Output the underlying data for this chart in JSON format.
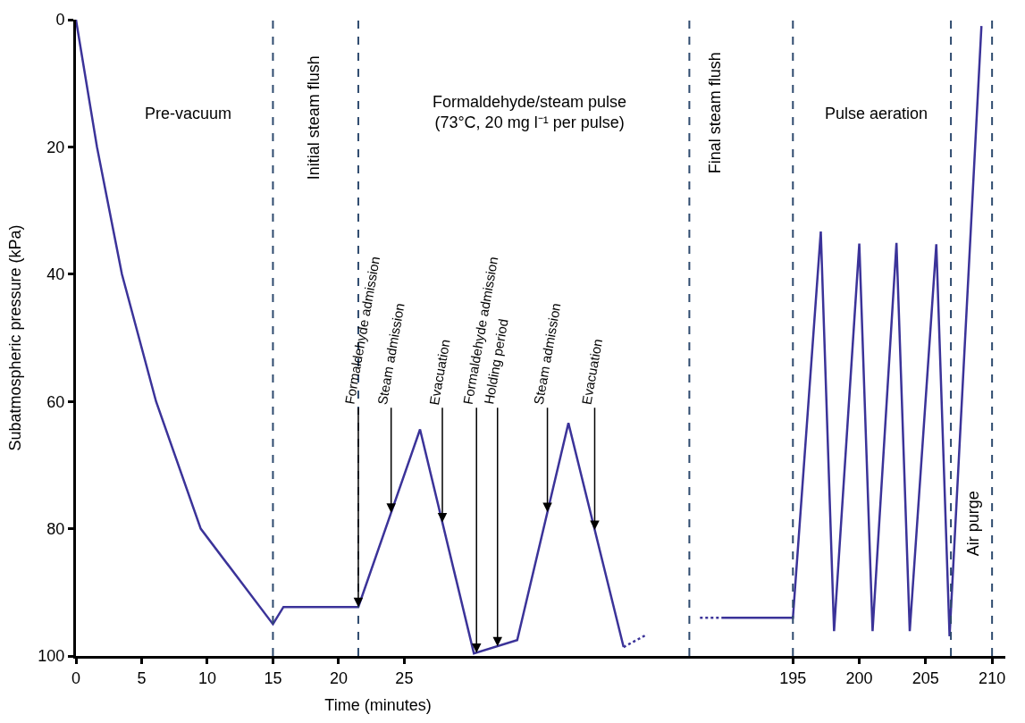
{
  "chart_data": [
    {
      "type": "line",
      "xlabel": "Time (minutes)",
      "ylabel": "Subatmospheric pressure (kPa)",
      "xlim": [
        0,
        46
      ],
      "xticks": [
        0,
        5,
        10,
        15,
        20,
        25
      ],
      "ylim": [
        100,
        0
      ],
      "yticks": [
        0,
        20,
        40,
        60,
        80,
        100
      ],
      "marker": "none",
      "series": [
        {
          "color": "#3b3399",
          "line_style": "solid",
          "x": [
            0,
            1.6,
            3.5,
            6.1,
            9.5,
            15,
            15.8,
            21.5,
            26.2,
            30.3,
            33.6,
            37.5,
            41.7
          ],
          "values": [
            0,
            20,
            40,
            60,
            80,
            95.0,
            92.3,
            92.3,
            64.4,
            99.6,
            97.5,
            63.4,
            98.6
          ]
        },
        {
          "color": "#3b3399",
          "line_style": "dotted",
          "x": [
            41.7,
            43.5
          ],
          "values": [
            98.6,
            96.6
          ]
        }
      ],
      "ref_lines": [
        {
          "axis": "x",
          "value": 15,
          "color": "#2e4a6e",
          "line_style": "dashed"
        },
        {
          "axis": "x",
          "value": 21.5,
          "color": "#2e4a6e",
          "line_style": "dashed"
        }
      ],
      "annotations": [
        "Pre-vacuum",
        "Initial steam flush",
        "Formaldehyde/steam pulse\n(73°C, 20 mg l⁻¹ per pulse)",
        {
          "text": "Formaldehyde admission",
          "x": 21.5,
          "y": 92.3
        },
        {
          "text": "Steam admission",
          "x": 24.0,
          "y": 77.5
        },
        {
          "text": "Evacuation",
          "x": 27.9,
          "y": 79.0
        },
        {
          "text": "Formaldehyde admission",
          "x": 30.5,
          "y": 99.5
        },
        {
          "text": "Holding period",
          "x": 32.1,
          "y": 98.5
        },
        {
          "text": "Steam admission",
          "x": 35.9,
          "y": 77.4
        },
        {
          "text": "Evacuation",
          "x": 39.5,
          "y": 80.2
        }
      ]
    },
    {
      "type": "line",
      "xlim": [
        186.5,
        211
      ],
      "xticks": [
        195,
        200,
        205,
        210
      ],
      "ylim": [
        100,
        0
      ],
      "tick_labels": "x",
      "marker": "none",
      "series": [
        {
          "color": "#3b3399",
          "line_style": "dotted",
          "x": [
            188.0,
            189.8
          ],
          "values": [
            94.0,
            94.0
          ]
        },
        {
          "color": "#3b3399",
          "line_style": "solid",
          "x": [
            189.8,
            195,
            197.1,
            198.1,
            200.0,
            201.0,
            202.8,
            203.8,
            205.8,
            206.8,
            209.2
          ],
          "values": [
            94.0,
            94.0,
            33.3,
            96.1,
            35.2,
            96.1,
            35.1,
            96.1,
            35.3,
            96.9,
            1.0
          ]
        }
      ],
      "ref_lines": [
        {
          "axis": "x",
          "value": 187.2,
          "color": "#2e4a6e",
          "line_style": "dashed"
        },
        {
          "axis": "x",
          "value": 195,
          "color": "#2e4a6e",
          "line_style": "dashed"
        },
        {
          "axis": "x",
          "value": 206.9,
          "color": "#2e4a6e",
          "line_style": "dashed"
        },
        {
          "axis": "x",
          "value": 210,
          "color": "#2e4a6e",
          "line_style": "dashed"
        }
      ],
      "annotations": [
        "Final steam flush",
        "Pulse aeration",
        "Air purge"
      ]
    }
  ]
}
